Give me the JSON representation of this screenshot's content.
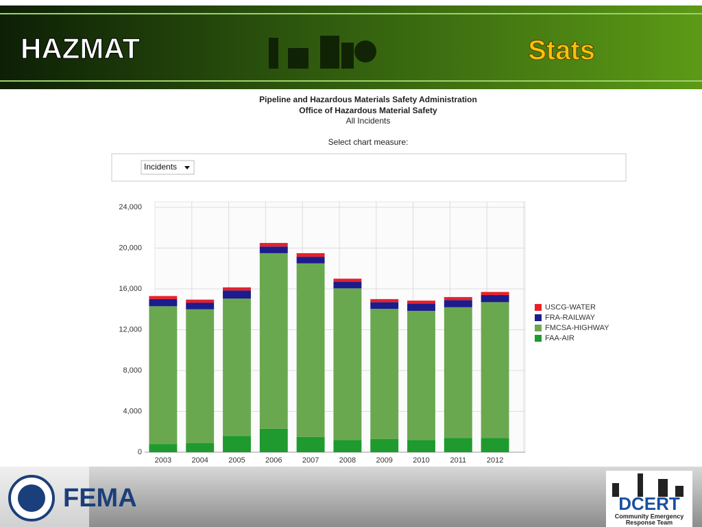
{
  "slide": {
    "title": "HAZMAT",
    "section": "Stats"
  },
  "controls": {
    "label": "Select chart measure:",
    "dropdown": "Incidents"
  },
  "footer": {
    "left_logo": "FEMA",
    "right_logo": "DCERT",
    "right_caption_1": "Community Emergency",
    "right_caption_2": "Response Team"
  },
  "chart_data": {
    "type": "stacked_bar",
    "title": "Pipeline and Hazardous Materials Safety Administration",
    "subtitle": "Office of Hazardous Material Safety",
    "annotations": [
      "All Incidents"
    ],
    "categories": [
      "2003",
      "2004",
      "2005",
      "2006",
      "2007",
      "2008",
      "2009",
      "2010",
      "2011",
      "2012"
    ],
    "series": [
      {
        "name": "USCG-WATER",
        "color": "#e8202a",
        "values": [
          300,
          300,
          300,
          350,
          350,
          300,
          300,
          300,
          300,
          300
        ]
      },
      {
        "name": "FRA-RAILWAY",
        "color": "#1c1c8c",
        "values": [
          700,
          650,
          800,
          650,
          650,
          650,
          650,
          700,
          700,
          700
        ]
      },
      {
        "name": "FMCSA-HIGHWAY",
        "color": "#6aa84f",
        "values": [
          13500,
          13100,
          13450,
          17200,
          17000,
          14850,
          12750,
          12650,
          12800,
          13300
        ]
      },
      {
        "name": "FAA-AIR",
        "color": "#1e9a2e",
        "values": [
          800,
          900,
          1600,
          2300,
          1500,
          1200,
          1300,
          1200,
          1400,
          1400
        ]
      }
    ],
    "ylim": [
      0,
      24000
    ],
    "yticks": [
      0,
      {
        "value": 4000,
        "label": "4,000"
      },
      {
        "value": 8000,
        "label": "8,000"
      },
      {
        "value": 12000,
        "label": "12,000"
      },
      {
        "value": 16000,
        "label": "16,000"
      },
      {
        "value": 20000,
        "label": "20,000"
      },
      {
        "value": 24000,
        "label": "24,000"
      }
    ],
    "grid": true,
    "legend": "right"
  }
}
